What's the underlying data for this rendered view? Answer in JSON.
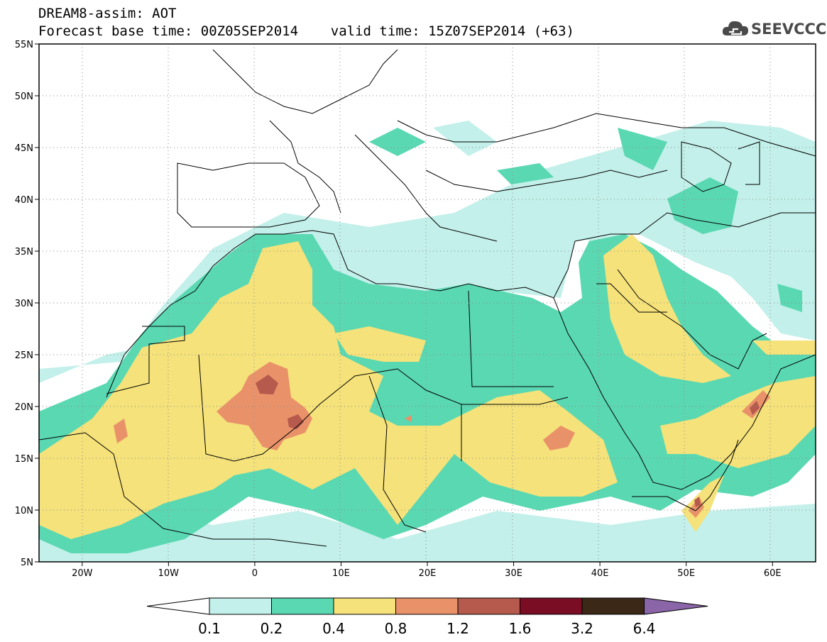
{
  "title": {
    "line1": "DREAM8-assim: AOT",
    "line2": "Forecast base time: 00Z05SEP2014    valid time: 15Z07SEP2014 (+63)"
  },
  "logo": {
    "text": "SEEVCCC",
    "icon": "cloud-icon",
    "color": "#4a4a4a"
  },
  "map": {
    "lon_range": [
      -25,
      65
    ],
    "lat_range": [
      5,
      55
    ],
    "lon_ticks": [
      {
        "value": -20,
        "label": "20W"
      },
      {
        "value": -10,
        "label": "10W"
      },
      {
        "value": 0,
        "label": "0"
      },
      {
        "value": 10,
        "label": "10E"
      },
      {
        "value": 20,
        "label": "20E"
      },
      {
        "value": 30,
        "label": "30E"
      },
      {
        "value": 40,
        "label": "40E"
      },
      {
        "value": 50,
        "label": "50E"
      },
      {
        "value": 60,
        "label": "60E"
      }
    ],
    "lat_ticks": [
      {
        "value": 55,
        "label": "55N"
      },
      {
        "value": 50,
        "label": "50N"
      },
      {
        "value": 45,
        "label": "45N"
      },
      {
        "value": 40,
        "label": "40N"
      },
      {
        "value": 35,
        "label": "35N"
      },
      {
        "value": 30,
        "label": "30N"
      },
      {
        "value": 25,
        "label": "25N"
      },
      {
        "value": 20,
        "label": "20N"
      },
      {
        "value": 15,
        "label": "15N"
      },
      {
        "value": 10,
        "label": "10N"
      },
      {
        "value": 5,
        "label": "5N"
      }
    ],
    "gridlines": "dotted"
  },
  "colorbar": {
    "boundaries": [
      "0.1",
      "0.2",
      "0.4",
      "0.8",
      "1.2",
      "1.6",
      "3.2",
      "6.4"
    ],
    "colors": [
      "#c3f0ea",
      "#5ad8b2",
      "#f5e27a",
      "#e9926a",
      "#b55a4c",
      "#7a0c24",
      "#3b2817",
      "#8a66a8"
    ],
    "under_color": "#ffffff"
  }
}
